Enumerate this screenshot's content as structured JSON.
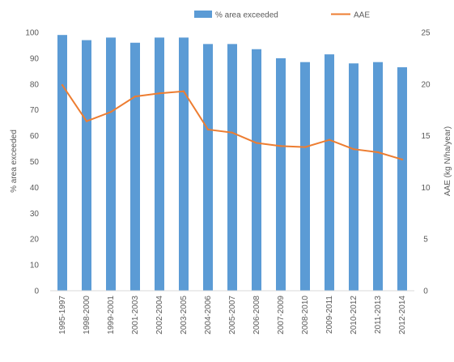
{
  "chart_data": {
    "type": "bar",
    "categories": [
      "1995-1997",
      "1998-2000",
      "1999-2001",
      "2001-2003",
      "2002-2004",
      "2003-2005",
      "2004-2006",
      "2005-2007",
      "2006-2008",
      "2007-2009",
      "2008-2010",
      "2009-2011",
      "2010-2012",
      "2011-2013",
      "2012-2014"
    ],
    "series": [
      {
        "name": "% area exceeded",
        "type": "bar",
        "axis": "left",
        "color": "#5b9bd5",
        "values": [
          99,
          97,
          98,
          96,
          98,
          98,
          95.5,
          95.5,
          93.5,
          90,
          88.5,
          91.5,
          88,
          88.5,
          86.5
        ]
      },
      {
        "name": "AAE",
        "type": "line",
        "axis": "right",
        "color": "#ed7d31",
        "values": [
          19.9,
          16.4,
          17.3,
          18.8,
          19.1,
          19.3,
          15.6,
          15.3,
          14.3,
          14.0,
          13.9,
          14.6,
          13.7,
          13.4,
          12.7
        ]
      }
    ],
    "ylabel": "% area exceeded",
    "y2label": "AAE (kg N/ha/year)",
    "ylim": [
      0,
      100
    ],
    "y2lim": [
      0,
      25
    ],
    "yticks": [
      "0",
      "10",
      "20",
      "30",
      "40",
      "50",
      "60",
      "70",
      "80",
      "90",
      "100"
    ],
    "y2ticks": [
      "0",
      "5",
      "10",
      "15",
      "20",
      "25"
    ],
    "legend_position": "top",
    "grid": false
  }
}
